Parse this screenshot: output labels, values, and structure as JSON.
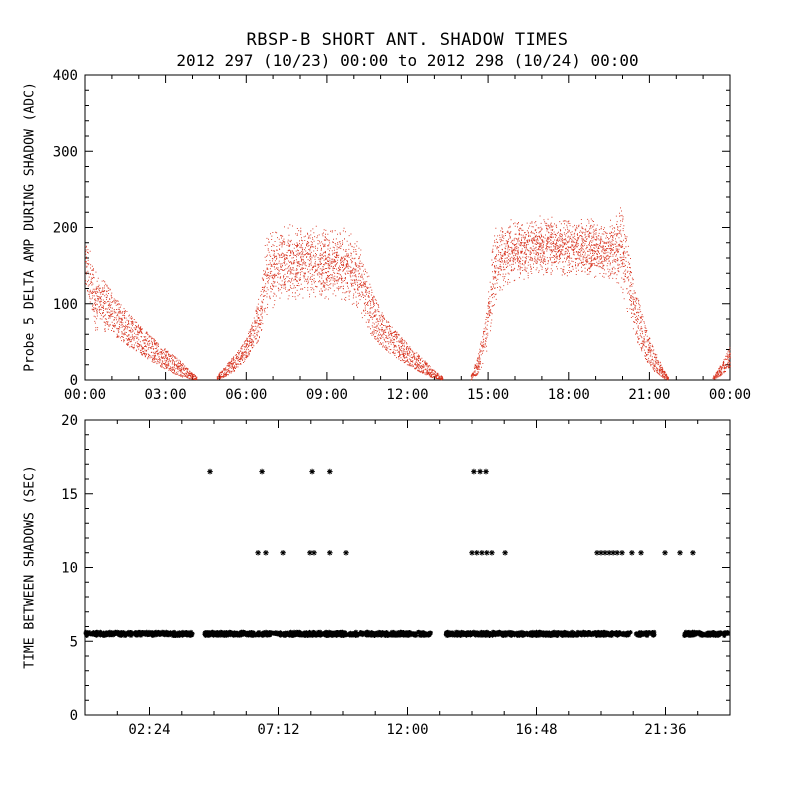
{
  "chart_data": [
    {
      "type": "scatter",
      "panel": "top",
      "title": "RBSP-B SHORT ANT. SHADOW TIMES",
      "subtitle": "2012 297 (10/23) 00:00 to 2012 298 (10/24) 00:00",
      "xlabel": "",
      "ylabel": "Probe 5 DELTA AMP DURING SHADOW (ADC)",
      "xlim_hours": [
        0,
        24
      ],
      "ylim": [
        0,
        400
      ],
      "grid": false,
      "legend": "none",
      "marker": "dot",
      "color": "#d8331f",
      "x_ticks": [
        {
          "h": 0,
          "label": "00:00"
        },
        {
          "h": 3,
          "label": "03:00"
        },
        {
          "h": 6,
          "label": "06:00"
        },
        {
          "h": 9,
          "label": "09:00"
        },
        {
          "h": 12,
          "label": "12:00"
        },
        {
          "h": 15,
          "label": "15:00"
        },
        {
          "h": 18,
          "label": "18:00"
        },
        {
          "h": 21,
          "label": "21:00"
        },
        {
          "h": 24,
          "label": "00:00"
        }
      ],
      "y_ticks": [
        {
          "v": 0,
          "label": "0"
        },
        {
          "v": 100,
          "label": "100"
        },
        {
          "v": 200,
          "label": "200"
        },
        {
          "v": 300,
          "label": "300"
        },
        {
          "v": 400,
          "label": "400"
        }
      ],
      "x_minor_step": 1,
      "y_minor_step": 20,
      "envelope_segments": [
        [
          [
            0.0,
            128,
            186,
            230
          ],
          [
            0.15,
            105,
            172,
            260
          ],
          [
            0.35,
            62,
            148,
            300
          ],
          [
            0.55,
            58,
            138,
            330
          ],
          [
            0.8,
            66,
            126,
            310
          ],
          [
            1.1,
            58,
            108,
            290
          ],
          [
            1.5,
            46,
            92,
            280
          ],
          [
            2.0,
            34,
            72,
            270
          ],
          [
            2.5,
            23,
            56,
            260
          ],
          [
            3.0,
            13,
            40,
            260
          ],
          [
            3.5,
            5,
            26,
            250
          ],
          [
            3.9,
            1,
            12,
            240
          ],
          [
            4.15,
            0,
            4,
            220
          ]
        ],
        [
          [
            4.9,
            0,
            5,
            220
          ],
          [
            5.2,
            4,
            18,
            240
          ],
          [
            5.6,
            13,
            34,
            260
          ],
          [
            6.0,
            27,
            55,
            280
          ],
          [
            6.3,
            44,
            86,
            290
          ],
          [
            6.55,
            55,
            122,
            290
          ],
          [
            6.7,
            70,
            196,
            280
          ],
          [
            6.9,
            86,
            200,
            310
          ],
          [
            7.2,
            96,
            202,
            340
          ],
          [
            7.6,
            100,
            206,
            350
          ],
          [
            8.0,
            104,
            202,
            360
          ],
          [
            8.5,
            100,
            206,
            360
          ],
          [
            9.0,
            104,
            210,
            360
          ],
          [
            9.5,
            100,
            202,
            350
          ],
          [
            9.9,
            94,
            196,
            340
          ],
          [
            10.2,
            84,
            186,
            320
          ],
          [
            10.45,
            68,
            160,
            300
          ],
          [
            10.7,
            54,
            116,
            290
          ],
          [
            11.0,
            44,
            90,
            280
          ],
          [
            11.4,
            33,
            70,
            270
          ],
          [
            11.8,
            24,
            55,
            265
          ],
          [
            12.2,
            15,
            40,
            260
          ],
          [
            12.6,
            7,
            26,
            250
          ],
          [
            13.0,
            2,
            12,
            240
          ],
          [
            13.3,
            0,
            4,
            220
          ]
        ],
        [
          [
            14.35,
            0,
            5,
            220
          ],
          [
            14.6,
            7,
            30,
            250
          ],
          [
            14.85,
            24,
            70,
            270
          ],
          [
            15.05,
            54,
            130,
            280
          ],
          [
            15.2,
            80,
            206,
            290
          ],
          [
            15.4,
            108,
            206,
            320
          ],
          [
            15.7,
            120,
            212,
            350
          ],
          [
            16.2,
            130,
            212,
            360
          ],
          [
            17.0,
            134,
            216,
            360
          ],
          [
            18.0,
            134,
            216,
            360
          ],
          [
            19.0,
            130,
            212,
            360
          ],
          [
            19.6,
            124,
            212,
            350
          ],
          [
            19.9,
            118,
            232,
            330
          ],
          [
            20.15,
            88,
            200,
            300
          ],
          [
            20.4,
            58,
            140,
            290
          ],
          [
            20.65,
            40,
            96,
            280
          ],
          [
            20.9,
            24,
            64,
            270
          ],
          [
            21.2,
            10,
            38,
            260
          ],
          [
            21.5,
            2,
            14,
            250
          ],
          [
            21.7,
            0,
            4,
            220
          ]
        ],
        [
          [
            23.35,
            0,
            4,
            220
          ],
          [
            23.55,
            3,
            14,
            250
          ],
          [
            23.75,
            9,
            26,
            270
          ],
          [
            24.0,
            17,
            45,
            290
          ]
        ]
      ]
    },
    {
      "type": "scatter",
      "panel": "bottom",
      "title": "",
      "xlabel": "",
      "ylabel": "TIME BETWEEN SHADOWS (SEC)",
      "xlim_hours": [
        0,
        24
      ],
      "ylim": [
        0,
        20
      ],
      "grid": false,
      "legend": "none",
      "marker": "asterisk",
      "color": "#000000",
      "x_ticks": [
        {
          "h": 2.4,
          "label": "02:24"
        },
        {
          "h": 7.2,
          "label": "07:12"
        },
        {
          "h": 12,
          "label": "12:00"
        },
        {
          "h": 16.8,
          "label": "16:48"
        },
        {
          "h": 21.6,
          "label": "21:36"
        }
      ],
      "y_ticks": [
        {
          "v": 0,
          "label": "0"
        },
        {
          "v": 5,
          "label": "5"
        },
        {
          "v": 10,
          "label": "10"
        },
        {
          "v": 15,
          "label": "15"
        },
        {
          "v": 20,
          "label": "20"
        }
      ],
      "x_minor_step": 1.2,
      "y_minor_step": 1,
      "band": {
        "value": 5.5,
        "jitter": 0.13,
        "markers_per_hour": 72,
        "segments_hours": [
          [
            0.02,
            4.0
          ],
          [
            4.45,
            12.88
          ],
          [
            13.42,
            20.32
          ],
          [
            20.5,
            21.2
          ],
          [
            22.3,
            23.93
          ]
        ]
      },
      "points": [
        {
          "value": 11.0,
          "hours": [
            6.44,
            6.73,
            7.37,
            8.37,
            8.52,
            9.11,
            9.71,
            14.4,
            14.58,
            14.77,
            14.95,
            15.14,
            15.63,
            19.05,
            19.2,
            19.35,
            19.5,
            19.65,
            19.8,
            19.98,
            20.35,
            20.69,
            21.58,
            22.14,
            22.62
          ]
        },
        {
          "value": 16.5,
          "hours": [
            4.65,
            6.59,
            8.45,
            9.11,
            14.47,
            14.7,
            14.92
          ]
        }
      ]
    }
  ]
}
